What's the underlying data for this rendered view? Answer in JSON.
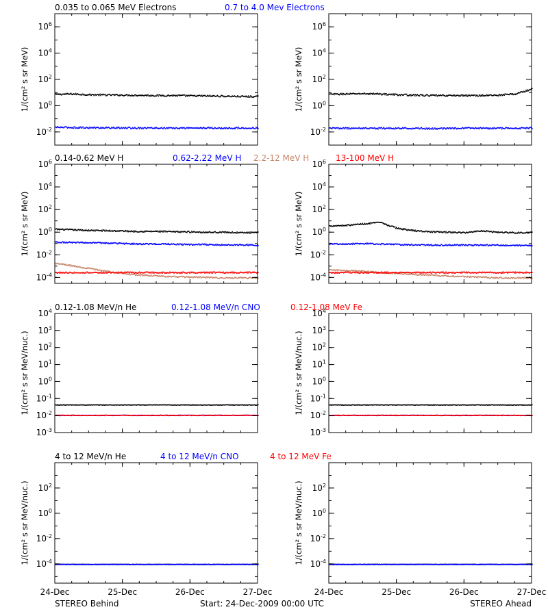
{
  "footer": {
    "left": "STEREO Behind",
    "center": "Start: 24-Dec-2009 00:00 UTC",
    "right": "STEREO Ahead"
  },
  "colors": {
    "black": "#000000",
    "blue": "#0000ff",
    "tan": "#c8876a",
    "red": "#ff0000"
  },
  "chart_data": [
    {
      "id": "electrons",
      "type": "scatter",
      "titles": [
        {
          "text": "0.035 to 0.065 MeV Electrons",
          "color": "black"
        },
        {
          "text": "0.7 to 4.0 Mev Electrons",
          "color": "blue"
        }
      ],
      "ylabel": "1/(cm² s sr MeV)",
      "yscale": "log",
      "ylim": [
        0.001,
        10000000
      ],
      "yticks": [
        {
          "base": "10",
          "exp": "6"
        },
        {
          "base": "10",
          "exp": "4"
        },
        {
          "base": "10",
          "exp": "2"
        },
        {
          "base": "10",
          "exp": "0"
        },
        {
          "base": "10",
          "exp": "-2"
        }
      ],
      "ytick_values": [
        1000000,
        10000,
        100,
        1,
        0.01
      ],
      "xticks": [
        "24-Dec",
        "25-Dec",
        "26-Dec",
        "27-Dec"
      ],
      "xlim_days": [
        0,
        3
      ],
      "panels": [
        {
          "name": "STEREO Behind",
          "series": [
            {
              "color": "black",
              "values": [
                8.0,
                8.5,
                7.5,
                7.2,
                7.0,
                6.8,
                6.5,
                6.5,
                6.2,
                6.0,
                5.8,
                5.5,
                5.3
              ]
            },
            {
              "color": "blue",
              "values": [
                0.025,
                0.024,
                0.023,
                0.023,
                0.022,
                0.022,
                0.022,
                0.021,
                0.022,
                0.022,
                0.021,
                0.022,
                0.022
              ]
            }
          ]
        },
        {
          "name": "STEREO Ahead",
          "series": [
            {
              "color": "black",
              "values": [
                8.0,
                8.5,
                9.0,
                8.5,
                7.5,
                7.0,
                6.5,
                6.5,
                6.5,
                6.5,
                7.0,
                8.5,
                20.0
              ]
            },
            {
              "color": "blue",
              "values": [
                0.022,
                0.021,
                0.021,
                0.021,
                0.021,
                0.021,
                0.02,
                0.02,
                0.021,
                0.021,
                0.021,
                0.021,
                0.022
              ]
            }
          ]
        }
      ]
    },
    {
      "id": "protons",
      "type": "scatter",
      "titles": [
        {
          "text": "0.14-0.62 MeV H",
          "color": "black"
        },
        {
          "text": "0.62-2.22 MeV H",
          "color": "blue"
        },
        {
          "text": "2.2-12 MeV H",
          "color": "tan"
        },
        {
          "text": "13-100 MeV H",
          "color": "red"
        }
      ],
      "ylabel": "1/(cm² s sr MeV)",
      "yscale": "log",
      "ylim": [
        3e-05,
        1000000
      ],
      "yticks": [
        {
          "base": "10",
          "exp": "6"
        },
        {
          "base": "10",
          "exp": "4"
        },
        {
          "base": "10",
          "exp": "2"
        },
        {
          "base": "10",
          "exp": "0"
        },
        {
          "base": "10",
          "exp": "-2"
        },
        {
          "base": "10",
          "exp": "-4"
        }
      ],
      "ytick_values": [
        1000000,
        10000,
        100,
        1,
        0.01,
        0.0001
      ],
      "xticks": [
        "24-Dec",
        "25-Dec",
        "26-Dec",
        "27-Dec"
      ],
      "xlim_days": [
        0,
        3
      ],
      "panels": [
        {
          "name": "STEREO Behind",
          "series": [
            {
              "color": "black",
              "values": [
                2.0,
                1.8,
                1.6,
                1.5,
                1.4,
                1.3,
                1.3,
                1.2,
                1.2,
                1.1,
                1.1,
                1.0,
                1.0
              ]
            },
            {
              "color": "blue",
              "values": [
                0.15,
                0.14,
                0.13,
                0.12,
                0.11,
                0.1,
                0.1,
                0.095,
                0.09,
                0.09,
                0.085,
                0.085,
                0.08
              ]
            },
            {
              "color": "tan",
              "values": [
                0.002,
                0.0012,
                0.0007,
                0.0004,
                0.00025,
                0.00018,
                0.00015,
                0.00013,
                0.00012,
                0.00011,
                0.0001,
                0.0001,
                0.0001
              ]
            },
            {
              "color": "red",
              "values": [
                0.0003,
                0.0003,
                0.0003,
                0.0003,
                0.0003,
                0.0003,
                0.0003,
                0.0003,
                0.0003,
                0.0003,
                0.0003,
                0.0003,
                0.0003
              ]
            }
          ]
        },
        {
          "name": "STEREO Ahead",
          "series": [
            {
              "color": "black",
              "values": [
                4.0,
                4.5,
                6.0,
                8.0,
                2.5,
                1.5,
                1.2,
                1.1,
                1.0,
                1.5,
                1.1,
                1.0,
                1.0
              ]
            },
            {
              "color": "blue",
              "values": [
                0.1,
                0.1,
                0.11,
                0.1,
                0.09,
                0.085,
                0.08,
                0.08,
                0.08,
                0.08,
                0.08,
                0.075,
                0.075
              ]
            },
            {
              "color": "tan",
              "values": [
                0.0005,
                0.00045,
                0.0004,
                0.0003,
                0.00025,
                0.0002,
                0.00018,
                0.00015,
                0.00013,
                0.00012,
                0.0001,
                0.0001,
                0.0001
              ]
            },
            {
              "color": "red",
              "values": [
                0.0003,
                0.0003,
                0.0003,
                0.0003,
                0.0003,
                0.0003,
                0.0003,
                0.0003,
                0.0003,
                0.0003,
                0.0003,
                0.0003,
                0.0003
              ]
            }
          ]
        }
      ]
    },
    {
      "id": "heavy-low",
      "type": "scatter",
      "titles": [
        {
          "text": "0.12-1.08 MeV/n He",
          "color": "black"
        },
        {
          "text": "0.12-1.08 MeV/n CNO",
          "color": "blue"
        },
        {
          "text": "0.12-1.08 MeV Fe",
          "color": "red"
        }
      ],
      "ylabel": "1/(cm² s sr MeV/nuc.)",
      "yscale": "log",
      "ylim": [
        0.001,
        10000
      ],
      "yticks": [
        {
          "base": "10",
          "exp": "4"
        },
        {
          "base": "10",
          "exp": "3"
        },
        {
          "base": "10",
          "exp": "2"
        },
        {
          "base": "10",
          "exp": "1"
        },
        {
          "base": "10",
          "exp": "0"
        },
        {
          "base": "10",
          "exp": "-1"
        },
        {
          "base": "10",
          "exp": "-2"
        },
        {
          "base": "10",
          "exp": "-3"
        }
      ],
      "ytick_values": [
        10000,
        1000,
        100,
        10,
        1,
        0.1,
        0.01,
        0.001
      ],
      "xticks": [
        "24-Dec",
        "25-Dec",
        "26-Dec",
        "27-Dec"
      ],
      "xlim_days": [
        0,
        3
      ],
      "panels": [
        {
          "name": "STEREO Behind",
          "series": [
            {
              "color": "black",
              "values": [
                0.045,
                0.045,
                0.045,
                0.045,
                0.045,
                0.045,
                0.045,
                0.045,
                0.045,
                0.045,
                0.045,
                0.045,
                0.045
              ]
            },
            {
              "color": "blue",
              "values": [
                0.011,
                0.011,
                0.011,
                0.011,
                0.011,
                0.011,
                0.011,
                0.011,
                0.011,
                0.011,
                0.011,
                0.011,
                0.011
              ]
            },
            {
              "color": "red",
              "values": [
                0.011,
                0.011,
                0.011,
                0.011,
                0.011,
                0.011,
                0.011,
                0.011,
                0.011,
                0.011,
                0.011,
                0.011,
                0.011
              ]
            }
          ]
        },
        {
          "name": "STEREO Ahead",
          "series": [
            {
              "color": "black",
              "values": [
                0.045,
                0.045,
                0.045,
                0.045,
                0.045,
                0.045,
                0.045,
                0.045,
                0.045,
                0.045,
                0.045,
                0.045,
                0.045
              ]
            },
            {
              "color": "blue",
              "values": [
                0.011,
                0.011,
                0.011,
                0.011,
                0.011,
                0.011,
                0.011,
                0.011,
                0.011,
                0.011,
                0.011,
                0.011,
                0.011
              ]
            },
            {
              "color": "red",
              "values": [
                0.011,
                0.011,
                0.011,
                0.011,
                0.011,
                0.011,
                0.011,
                0.011,
                0.011,
                0.011,
                0.011,
                0.011,
                0.011
              ]
            }
          ]
        }
      ]
    },
    {
      "id": "heavy-high",
      "type": "scatter",
      "titles": [
        {
          "text": "4 to 12 MeV/n He",
          "color": "black"
        },
        {
          "text": "4 to 12 MeV/n CNO",
          "color": "blue"
        },
        {
          "text": "4 to 12 MeV Fe",
          "color": "red"
        }
      ],
      "ylabel": "1/(cm² s sr MeV/nuc.)",
      "yscale": "log",
      "ylim": [
        3e-06,
        10000
      ],
      "yticks": [
        {
          "base": "10",
          "exp": "2"
        },
        {
          "base": "10",
          "exp": "0"
        },
        {
          "base": "10",
          "exp": "-2"
        },
        {
          "base": "10",
          "exp": "-4"
        }
      ],
      "ytick_values": [
        100,
        1,
        0.01,
        0.0001
      ],
      "xticks": [
        "24-Dec",
        "25-Dec",
        "26-Dec",
        "27-Dec"
      ],
      "xlim_days": [
        0,
        3
      ],
      "panels": [
        {
          "name": "STEREO Behind",
          "series": [
            {
              "color": "black",
              "values": [
                0.0001,
                0.0001,
                0.0001,
                0.0001,
                0.0001,
                0.0001,
                0.0001,
                0.0001,
                0.0001,
                0.0001,
                0.0001,
                0.0001,
                0.0001
              ]
            },
            {
              "color": "blue",
              "values": [
                0.0001,
                0.0001,
                0.0001,
                0.0001,
                0.0001,
                0.0001,
                0.0001,
                0.0001,
                0.0001,
                0.0001,
                0.0001,
                0.0001,
                0.0001
              ]
            }
          ]
        },
        {
          "name": "STEREO Ahead",
          "series": [
            {
              "color": "black",
              "values": [
                0.0001,
                0.0001,
                0.0001,
                0.0001,
                0.0001,
                0.0001,
                0.0001,
                0.0001,
                0.0001,
                0.0001,
                0.0001,
                0.0001,
                0.0001
              ]
            },
            {
              "color": "blue",
              "values": [
                0.0001,
                0.0001,
                0.0001,
                0.0001,
                0.0001,
                0.0001,
                0.0001,
                0.0001,
                0.0001,
                0.0001,
                0.0001,
                0.0001,
                0.0001
              ]
            }
          ]
        }
      ]
    }
  ]
}
